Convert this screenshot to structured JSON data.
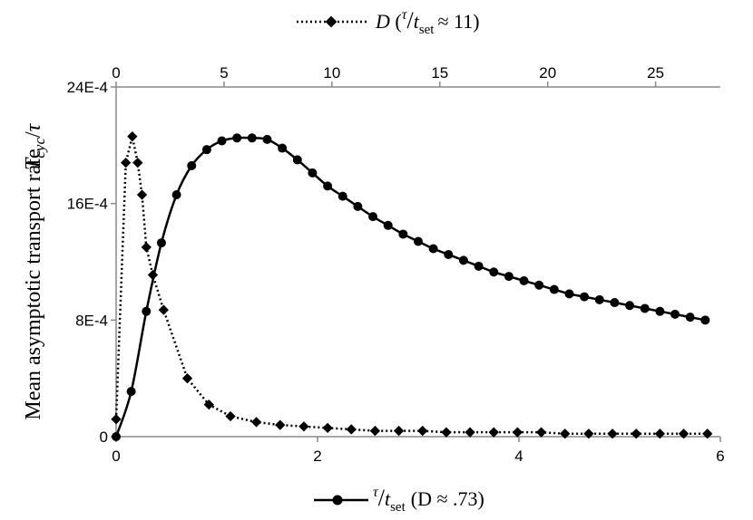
{
  "chart_data": {
    "type": "scatter",
    "ylabel": "Mean asymptotic transport rate",
    "ylabel_symbol": {
      "T": "T",
      "sub": "cyc",
      "slash": "/",
      "tau": "τ"
    },
    "legend": {
      "bottom": {
        "tau": "τ",
        "slash": "/",
        "t": "t",
        "sub": "set",
        "param": "(D ≈ .73)"
      },
      "top": {
        "D": "D",
        "open": "(",
        "tau": "τ",
        "slash": "/",
        "t": "t",
        "sub": "set",
        "rest": "≈ 11)"
      }
    },
    "y_axis": {
      "range": [
        0,
        0.0024
      ],
      "ticks": [
        0,
        0.0008,
        0.0016,
        0.0024
      ],
      "tick_labels": [
        "0",
        "8E-4",
        "16E-4",
        "24E-4"
      ]
    },
    "x_bottom": {
      "range": [
        0,
        6
      ],
      "ticks": [
        0,
        2,
        4,
        6
      ],
      "tick_labels": [
        "0",
        "2",
        "4",
        "6"
      ]
    },
    "x_top": {
      "range": [
        0,
        28
      ],
      "ticks": [
        0,
        5,
        10,
        15,
        20,
        25
      ],
      "tick_labels": [
        "0",
        "5",
        "10",
        "15",
        "20",
        "25"
      ]
    },
    "series": [
      {
        "axis": "bottom",
        "line": "solid",
        "marker": "circle",
        "x": [
          0,
          0.15,
          0.3,
          0.45,
          0.6,
          0.75,
          0.9,
          1.05,
          1.2,
          1.35,
          1.5,
          1.65,
          1.8,
          1.95,
          2.1,
          2.25,
          2.4,
          2.55,
          2.7,
          2.85,
          3.0,
          3.15,
          3.3,
          3.45,
          3.6,
          3.75,
          3.9,
          4.05,
          4.2,
          4.35,
          4.5,
          4.65,
          4.8,
          4.95,
          5.1,
          5.25,
          5.4,
          5.55,
          5.7,
          5.85
        ],
        "y": [
          0,
          0.00031,
          0.00086,
          0.00133,
          0.00166,
          0.00186,
          0.00197,
          0.00203,
          0.00205,
          0.00205,
          0.00204,
          0.00198,
          0.0019,
          0.00181,
          0.00172,
          0.00165,
          0.00158,
          0.00151,
          0.00145,
          0.00139,
          0.00134,
          0.00129,
          0.00125,
          0.00121,
          0.00117,
          0.00113,
          0.0011,
          0.00107,
          0.00104,
          0.00101,
          0.00098,
          0.00096,
          0.00094,
          0.00092,
          0.0009,
          0.00088,
          0.00086,
          0.00084,
          0.00082,
          0.0008
        ]
      },
      {
        "axis": "top",
        "line": "dotted",
        "marker": "diamond",
        "x": [
          0,
          0.45,
          0.75,
          1.0,
          1.2,
          1.4,
          1.7,
          2.2,
          3.3,
          4.3,
          5.3,
          6.5,
          7.6,
          8.7,
          9.8,
          10.9,
          12.0,
          13.1,
          14.2,
          15.3,
          16.4,
          17.5,
          18.6,
          19.7,
          20.8,
          21.9,
          23.0,
          24.1,
          25.2,
          26.3,
          27.4
        ],
        "y": [
          0.00012,
          0.00188,
          0.00206,
          0.00188,
          0.00166,
          0.0013,
          0.00111,
          0.00087,
          0.0004,
          0.00022,
          0.00014,
          0.0001,
          8e-05,
          7e-05,
          6e-05,
          5e-05,
          4e-05,
          4e-05,
          4e-05,
          3e-05,
          3e-05,
          3e-05,
          3e-05,
          3e-05,
          2e-05,
          2e-05,
          2e-05,
          2e-05,
          2e-05,
          2e-05,
          2e-05
        ]
      }
    ],
    "grid": false
  }
}
